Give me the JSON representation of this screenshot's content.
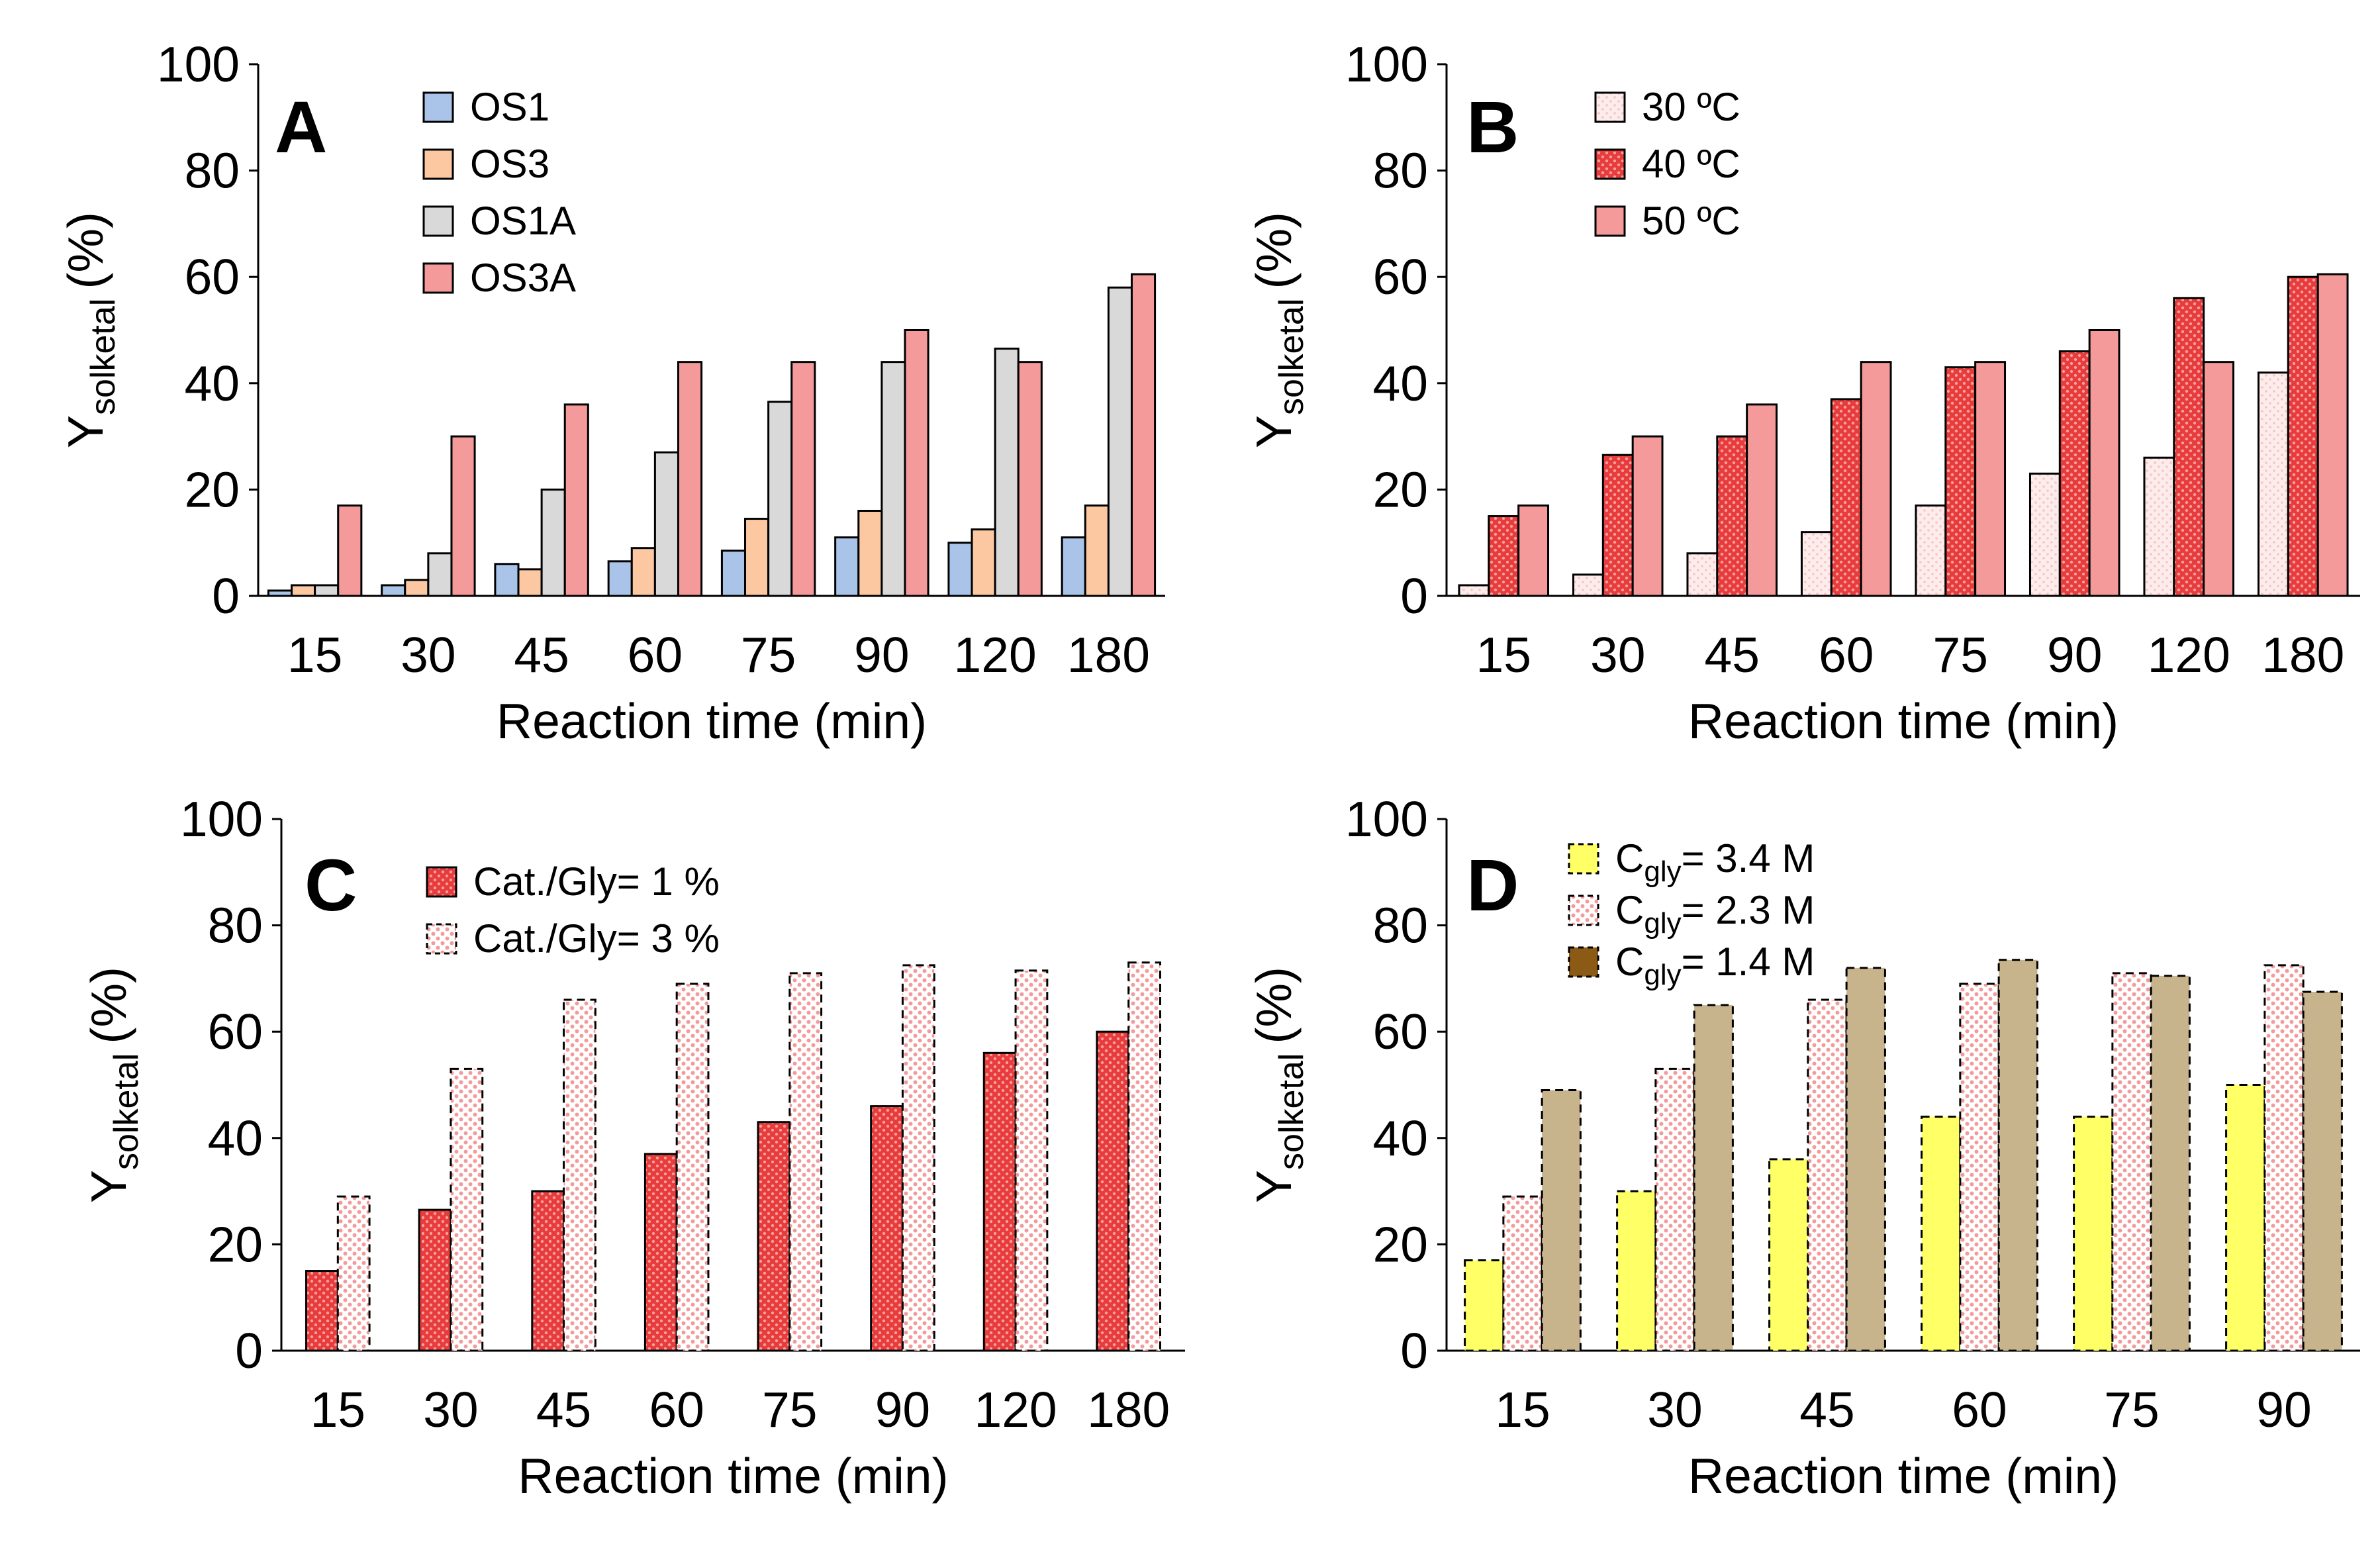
{
  "chart_data": [
    {
      "panel": "A",
      "type": "bar",
      "title": "",
      "xlabel": "Reaction time (min)",
      "ylabel": "Y",
      "ylabel_sub": "solketal",
      "ylabel_unit": "(%)",
      "ylim": [
        0,
        100
      ],
      "yticks": [
        "0",
        "20",
        "40",
        "60",
        "80",
        "100"
      ],
      "grid": false,
      "legend": "top-left",
      "categories": [
        "15",
        "30",
        "45",
        "60",
        "75",
        "90",
        "120",
        "180"
      ],
      "series": [
        {
          "name": "OS1",
          "color": "#a9c4e8",
          "pattern": "solid",
          "values": [
            1,
            2,
            6,
            6.5,
            8.5,
            11,
            10,
            11
          ]
        },
        {
          "name": "OS3",
          "color": "#fcc8a2",
          "pattern": "solid",
          "values": [
            2,
            3,
            5,
            9,
            14.5,
            16,
            12.5,
            17
          ]
        },
        {
          "name": "OS1A",
          "color": "#d9d9d9",
          "pattern": "solid",
          "values": [
            2,
            8,
            20,
            27,
            36.5,
            44,
            46.5,
            58
          ]
        },
        {
          "name": "OS3A",
          "color": "#f49a9a",
          "pattern": "solid",
          "values": [
            17,
            30,
            36,
            44,
            44,
            50,
            44,
            60.5
          ]
        }
      ]
    },
    {
      "panel": "B",
      "type": "bar",
      "title": "",
      "xlabel": "Reaction time (min)",
      "ylabel": "Y",
      "ylabel_sub": "solketal",
      "ylabel_unit": "(%)",
      "ylim": [
        0,
        100
      ],
      "yticks": [
        "0",
        "20",
        "40",
        "60",
        "80",
        "100"
      ],
      "grid": false,
      "legend": "top-left",
      "categories": [
        "15",
        "30",
        "45",
        "60",
        "75",
        "90",
        "120",
        "180"
      ],
      "series": [
        {
          "name": "30 ºC",
          "color": "#fde6e6",
          "pattern": "dots-light",
          "values": [
            2,
            4,
            8,
            12,
            17,
            23,
            26,
            42
          ]
        },
        {
          "name": "40 ºC",
          "color": "#e83c3c",
          "pattern": "dots-dark",
          "values": [
            15,
            26.5,
            30,
            37,
            43,
            46,
            56,
            60
          ]
        },
        {
          "name": "50 ºC",
          "color": "#f49a9a",
          "pattern": "solid",
          "values": [
            17,
            30,
            36,
            44,
            44,
            50,
            44,
            60.5
          ]
        }
      ]
    },
    {
      "panel": "C",
      "type": "bar",
      "title": "",
      "xlabel": "Reaction time (min)",
      "ylabel": "Y",
      "ylabel_sub": "solketal",
      "ylabel_unit": "(%)",
      "ylim": [
        0,
        100
      ],
      "yticks": [
        "0",
        "20",
        "40",
        "60",
        "80",
        "100"
      ],
      "grid": false,
      "legend": "top-left",
      "categories": [
        "15",
        "30",
        "45",
        "60",
        "75",
        "90",
        "120",
        "180"
      ],
      "series": [
        {
          "name": "Cat./Gly= 1 %",
          "color": "#e83c3c",
          "pattern": "dots-dark",
          "values": [
            15,
            26.5,
            30,
            37,
            43,
            46,
            56,
            60
          ]
        },
        {
          "name": "Cat./Gly= 3 %",
          "color": "#fde6e6",
          "pattern": "dots-pink",
          "dashed": true,
          "values": [
            29,
            53,
            66,
            69,
            71,
            72.5,
            71.5,
            73
          ]
        }
      ]
    },
    {
      "panel": "D",
      "type": "bar",
      "title": "",
      "xlabel": "Reaction time (min)",
      "ylabel": "Y",
      "ylabel_sub": "solketal",
      "ylabel_unit": "(%)",
      "ylim": [
        0,
        100
      ],
      "yticks": [
        "0",
        "20",
        "40",
        "60",
        "80",
        "100"
      ],
      "grid": false,
      "legend": "top-left",
      "categories": [
        "15",
        "30",
        "45",
        "60",
        "75",
        "90"
      ],
      "series": [
        {
          "name": "C",
          "sub": "gly",
          "suffix": "= 3.4 M",
          "color": "#ffff66",
          "pattern": "solid",
          "dashed": true,
          "values": [
            17,
            30,
            36,
            44,
            44,
            50
          ]
        },
        {
          "name": "C",
          "sub": "gly",
          "suffix": "= 2.3 M",
          "color": "#fde6e6",
          "pattern": "dots-pink",
          "dashed": true,
          "values": [
            29,
            53,
            66,
            69,
            71,
            72.5
          ]
        },
        {
          "name": "C",
          "sub": "gly",
          "suffix": "= 1.4 M",
          "color": "#c8b48c",
          "legend_color": "#8b5a14",
          "pattern": "solid",
          "dashed": true,
          "values": [
            49,
            65,
            72,
            73.5,
            70.5,
            67.5
          ]
        }
      ]
    }
  ]
}
